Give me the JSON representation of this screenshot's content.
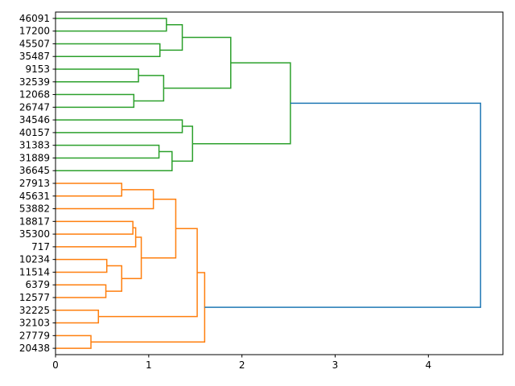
{
  "chart_data": {
    "type": "dendrogram",
    "orientation": "left",
    "xlim": [
      0,
      4.8
    ],
    "xticks": [
      0,
      1,
      2,
      3,
      4
    ],
    "leaves": [
      "46091",
      "17200",
      "45507",
      "35487",
      "9153",
      "32539",
      "12068",
      "26747",
      "34546",
      "40157",
      "31383",
      "31889",
      "36645",
      "27913",
      "45631",
      "53882",
      "18817",
      "35300",
      "717",
      "10234",
      "11514",
      "6379",
      "12577",
      "32225",
      "32103",
      "27779",
      "20438"
    ],
    "colors": {
      "green": "#2ca02c",
      "orange": "#ff7f0e",
      "blue": "#1f77b4"
    },
    "merges": [
      {
        "a": "L0",
        "b": "L1",
        "height": 1.19,
        "color": "green"
      },
      {
        "a": "L2",
        "b": "L3",
        "height": 1.12,
        "color": "green"
      },
      {
        "a": "N0",
        "b": "N1",
        "height": 1.36,
        "color": "green"
      },
      {
        "a": "L4",
        "b": "L5",
        "height": 0.89,
        "color": "green"
      },
      {
        "a": "L6",
        "b": "L7",
        "height": 0.84,
        "color": "green"
      },
      {
        "a": "N3",
        "b": "N4",
        "height": 1.16,
        "color": "green"
      },
      {
        "a": "N2",
        "b": "N5",
        "height": 1.88,
        "color": "green"
      },
      {
        "a": "L8",
        "b": "L9",
        "height": 1.36,
        "color": "green"
      },
      {
        "a": "L10",
        "b": "L11",
        "height": 1.11,
        "color": "green"
      },
      {
        "a": "N8",
        "b": "L12",
        "height": 1.25,
        "color": "green"
      },
      {
        "a": "N7",
        "b": "N9",
        "height": 1.47,
        "color": "green"
      },
      {
        "a": "N6",
        "b": "N10",
        "height": 2.52,
        "color": "green"
      },
      {
        "a": "L13",
        "b": "L14",
        "height": 0.71,
        "color": "orange"
      },
      {
        "a": "N12",
        "b": "L15",
        "height": 1.05,
        "color": "orange"
      },
      {
        "a": "L16",
        "b": "L17",
        "height": 0.83,
        "color": "orange"
      },
      {
        "a": "N14",
        "b": "L18",
        "height": 0.86,
        "color": "orange"
      },
      {
        "a": "L19",
        "b": "L20",
        "height": 0.55,
        "color": "orange"
      },
      {
        "a": "L21",
        "b": "L22",
        "height": 0.54,
        "color": "orange"
      },
      {
        "a": "N16",
        "b": "N17",
        "height": 0.71,
        "color": "orange"
      },
      {
        "a": "N15",
        "b": "N18",
        "height": 0.92,
        "color": "orange"
      },
      {
        "a": "N13",
        "b": "N19",
        "height": 1.29,
        "color": "orange"
      },
      {
        "a": "L23",
        "b": "L24",
        "height": 0.46,
        "color": "orange"
      },
      {
        "a": "N20",
        "b": "N21",
        "height": 1.52,
        "color": "orange"
      },
      {
        "a": "L25",
        "b": "L26",
        "height": 0.38,
        "color": "orange"
      },
      {
        "a": "N22",
        "b": "N23",
        "height": 1.6,
        "color": "orange"
      },
      {
        "a": "N11",
        "b": "N24",
        "height": 4.56,
        "color": "blue"
      }
    ]
  }
}
